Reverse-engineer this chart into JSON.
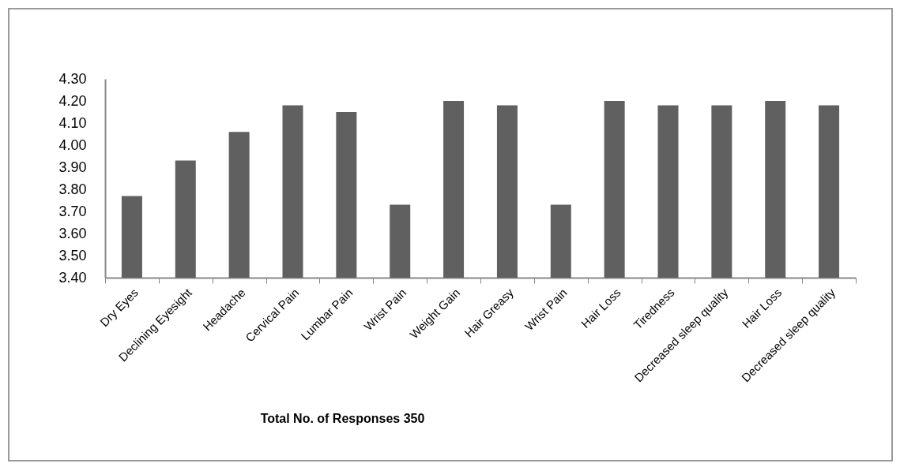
{
  "chart_data": {
    "type": "bar",
    "xlabel": "Total No. of  Responses 350",
    "categories": [
      "Dry Eyes",
      "Declining Eyesight",
      "Headache",
      "Cervical Pain",
      "Lumbar Pain",
      "Wrist Pain",
      "Weight Gain",
      "Hair Greasy",
      "Wrist Pain",
      "Hair Loss",
      "Tiredness",
      "Decreased sleep quality",
      "Hair Loss",
      "Decreased sleep quality"
    ],
    "values": [
      3.77,
      3.93,
      4.06,
      4.18,
      4.15,
      3.73,
      4.2,
      4.18,
      3.73,
      4.2,
      4.18,
      4.18,
      4.2,
      4.18
    ],
    "color": "#606060",
    "ylim": [
      3.4,
      4.3
    ],
    "yticks": [
      {
        "value": 3.4,
        "label": "3.40"
      },
      {
        "value": 3.5,
        "label": "3.50"
      },
      {
        "value": 3.6,
        "label": "3.60"
      },
      {
        "value": 3.7,
        "label": "3.70"
      },
      {
        "value": 3.8,
        "label": "3.80"
      },
      {
        "value": 3.9,
        "label": "3.90"
      },
      {
        "value": 4.0,
        "label": "4.00"
      },
      {
        "value": 4.1,
        "label": "4.10"
      },
      {
        "value": 4.2,
        "label": "4.20"
      },
      {
        "value": 4.3,
        "label": "4.30"
      }
    ],
    "grid": false
  }
}
